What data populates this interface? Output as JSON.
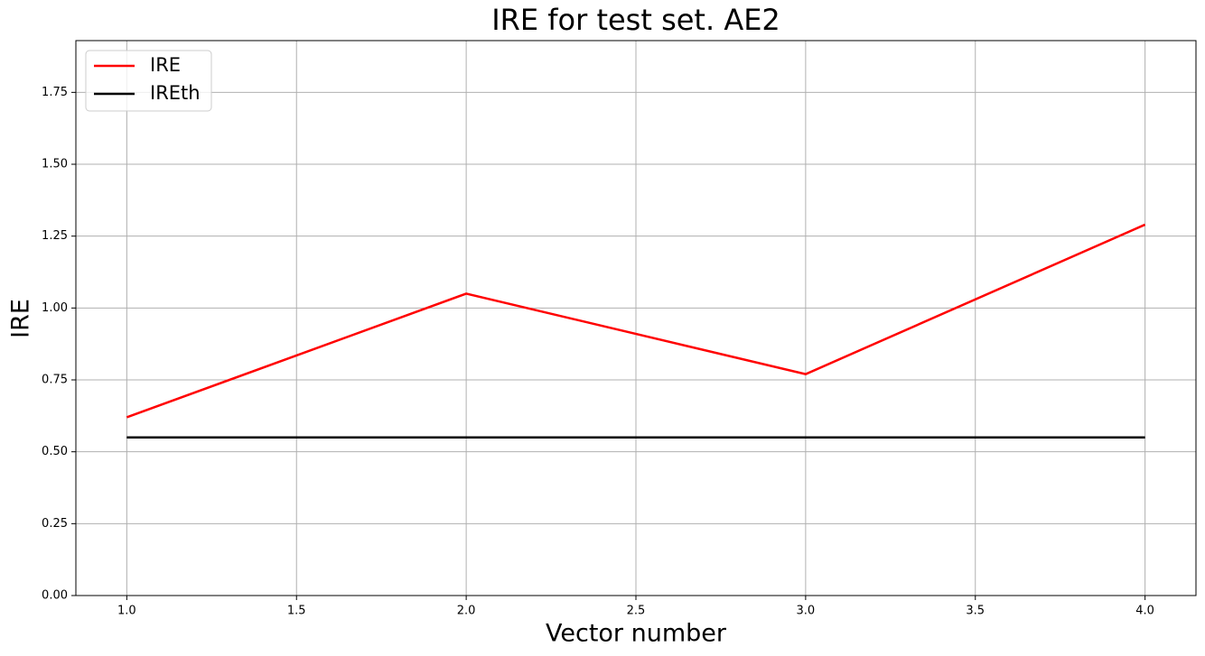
{
  "chart_data": {
    "type": "line",
    "title": "IRE for test set. AE2",
    "x_label": "Vector number",
    "y_label": "IRE",
    "x": [
      1,
      2,
      3,
      4
    ],
    "series": [
      {
        "name": "IRE",
        "color": "#ff0000",
        "values": [
          0.62,
          1.05,
          0.77,
          1.29
        ]
      },
      {
        "name": "IREth",
        "color": "#000000",
        "values": [
          0.55,
          0.55,
          0.55,
          0.55
        ]
      }
    ],
    "xlim": [
      0.85,
      4.15
    ],
    "ylim": [
      0,
      1.93
    ],
    "xticks": [
      {
        "value": 1,
        "label": "1.0"
      },
      {
        "value": 1.5,
        "label": "1.5"
      },
      {
        "value": 2,
        "label": "2.0"
      },
      {
        "value": 2.5,
        "label": "2.5"
      },
      {
        "value": 3,
        "label": "3.0"
      },
      {
        "value": 3.5,
        "label": "3.5"
      },
      {
        "value": 4,
        "label": "4.0"
      }
    ],
    "yticks": [
      {
        "value": 0,
        "label": "0.00"
      },
      {
        "value": 0.25,
        "label": "0.25"
      },
      {
        "value": 0.5,
        "label": "0.50"
      },
      {
        "value": 0.75,
        "label": "0.75"
      },
      {
        "value": 1,
        "label": "1.00"
      },
      {
        "value": 1.25,
        "label": "1.25"
      },
      {
        "value": 1.5,
        "label": "1.50"
      },
      {
        "value": 1.75,
        "label": "1.75"
      }
    ],
    "grid": true,
    "legend": "upper-left"
  }
}
